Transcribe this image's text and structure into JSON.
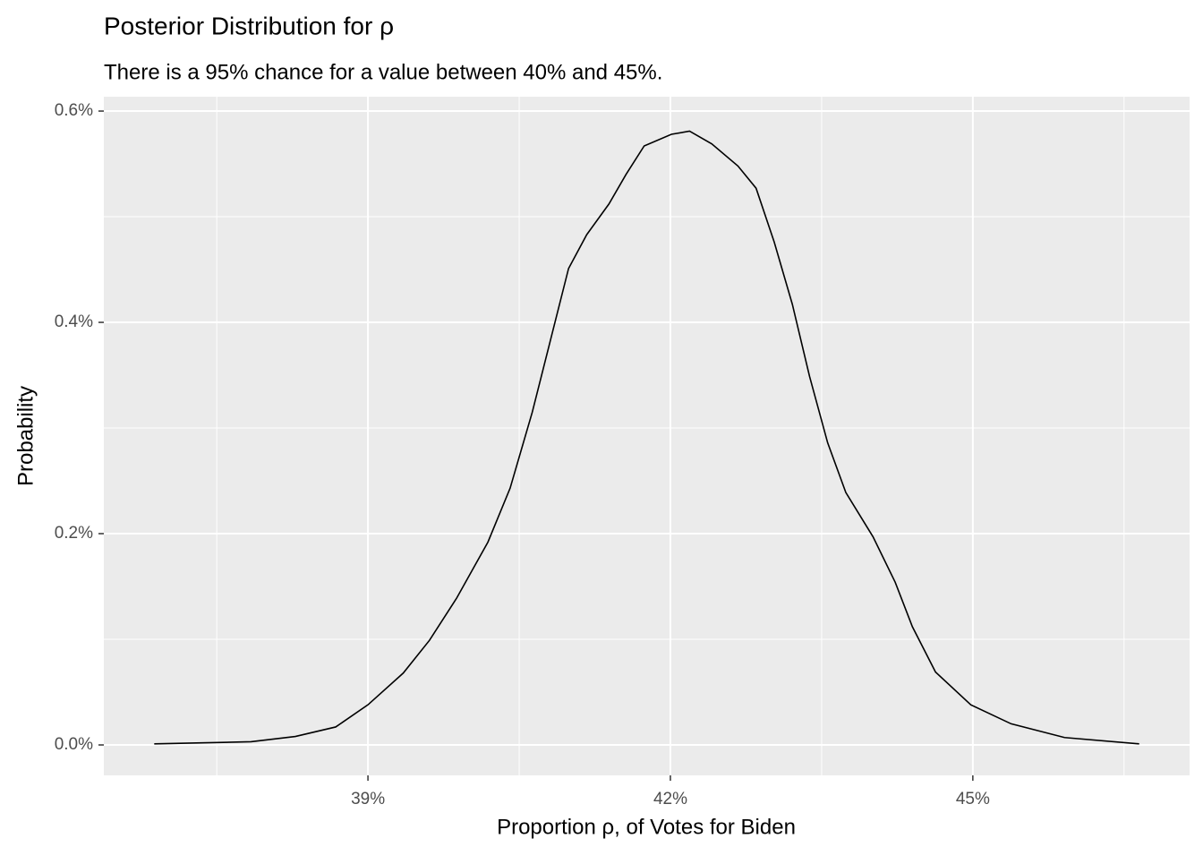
{
  "chart_data": {
    "type": "line",
    "title": "Posterior Distribution for ρ",
    "subtitle": "There is a 95% chance for a value between 40% and 45%.",
    "x_label": "Proportion ρ, of Votes for Biden",
    "y_label": "Probability",
    "x": [
      36.88,
      37.84,
      38.28,
      38.68,
      39.0,
      39.35,
      39.61,
      39.88,
      40.19,
      40.41,
      40.63,
      40.81,
      40.99,
      41.17,
      41.39,
      41.56,
      41.74,
      42.01,
      42.19,
      42.41,
      42.67,
      42.85,
      43.03,
      43.21,
      43.38,
      43.56,
      43.74,
      44.01,
      44.23,
      44.4,
      44.63,
      44.98,
      45.38,
      45.91,
      46.65
    ],
    "values": [
      0.001,
      0.003,
      0.008,
      0.017,
      0.038,
      0.068,
      0.099,
      0.139,
      0.192,
      0.243,
      0.315,
      0.383,
      0.451,
      0.483,
      0.512,
      0.54,
      0.567,
      0.578,
      0.581,
      0.569,
      0.548,
      0.527,
      0.476,
      0.417,
      0.349,
      0.286,
      0.239,
      0.197,
      0.154,
      0.112,
      0.069,
      0.038,
      0.02,
      0.007,
      0.001
    ],
    "color": "#000000",
    "xlim": [
      36.38,
      47.15
    ],
    "ylim": [
      -0.0288,
      0.6136
    ],
    "xticks": [
      {
        "value": 39,
        "label": "39%"
      },
      {
        "value": 42,
        "label": "42%"
      },
      {
        "value": 45,
        "label": "45%"
      }
    ],
    "yticks": [
      {
        "value": 0,
        "label": "0.0%"
      },
      {
        "value": 0.2,
        "label": "0.2%"
      },
      {
        "value": 0.4,
        "label": "0.4%"
      },
      {
        "value": 0.6,
        "label": "0.6%"
      }
    ],
    "x_minor_grid": [
      37.5,
      40.5,
      43.5,
      46.5
    ],
    "y_minor_grid": [
      0.1,
      0.3,
      0.5
    ],
    "grid": true
  }
}
